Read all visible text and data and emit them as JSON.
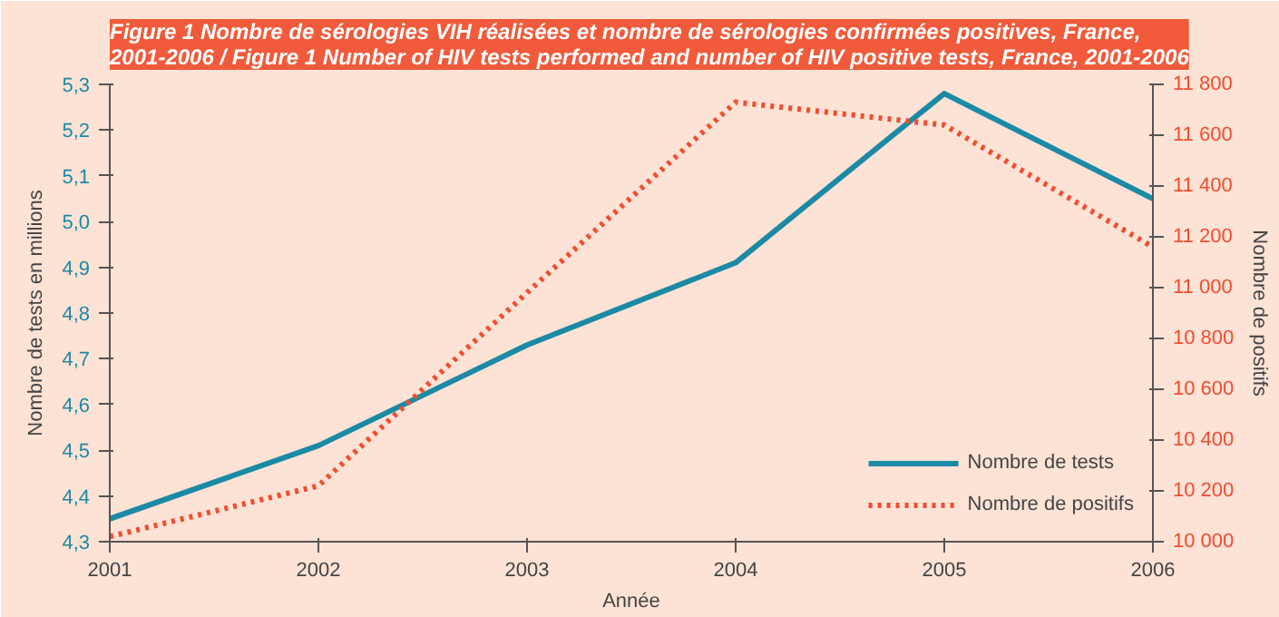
{
  "chart_data": {
    "type": "line",
    "title": "Figure 1 Nombre de sérologies VIH réalisées et nombre de sérologies confirmées positives, France,\n2001-2006 / Figure 1 Number of HIV tests performed and number of HIV positive tests, France, 2001-2006",
    "xlabel": "Année",
    "ylabel": "Nombre de tests en millions",
    "y2label": "Nombre de positifs",
    "x": [
      2001,
      2002,
      2003,
      2004,
      2005,
      2006
    ],
    "xlim": [
      2001,
      2006
    ],
    "xticks": [
      2001,
      2002,
      2003,
      2004,
      2005,
      2006
    ],
    "ylim": [
      4.3,
      5.3
    ],
    "yticks": [
      {
        "value": 4.3,
        "label": "4,3"
      },
      {
        "value": 4.4,
        "label": "4,4"
      },
      {
        "value": 4.5,
        "label": "4,5"
      },
      {
        "value": 4.6,
        "label": "4,6"
      },
      {
        "value": 4.7,
        "label": "4,7"
      },
      {
        "value": 4.8,
        "label": "4,8"
      },
      {
        "value": 4.9,
        "label": "4,9"
      },
      {
        "value": 5.0,
        "label": "5,0"
      },
      {
        "value": 5.1,
        "label": "5,1"
      },
      {
        "value": 5.2,
        "label": "5,2"
      },
      {
        "value": 5.3,
        "label": "5,3"
      }
    ],
    "y2lim": [
      10000,
      11800
    ],
    "y2ticks": [
      {
        "value": 10000,
        "label": "10 000"
      },
      {
        "value": 10200,
        "label": "10 200"
      },
      {
        "value": 10400,
        "label": "10 400"
      },
      {
        "value": 10600,
        "label": "10 600"
      },
      {
        "value": 10800,
        "label": "10 800"
      },
      {
        "value": 11000,
        "label": "11 000"
      },
      {
        "value": 11200,
        "label": "11 200"
      },
      {
        "value": 11400,
        "label": "11 400"
      },
      {
        "value": 11600,
        "label": "11 600"
      },
      {
        "value": 11800,
        "label": "11 800"
      }
    ],
    "series": [
      {
        "name": "Nombre de tests",
        "color": "#1b8aa5",
        "values": [
          4.35,
          4.51,
          4.73,
          4.91,
          5.28,
          5.05
        ]
      },
      {
        "name": "Nombre de positifs",
        "color": "#f04e30",
        "values": [
          10020,
          10220,
          10980,
          11730,
          11640,
          11160
        ],
        "axis": "y2",
        "line_style": "dotted"
      }
    ],
    "grid": false,
    "legend": "bottom right",
    "marker": "none"
  }
}
